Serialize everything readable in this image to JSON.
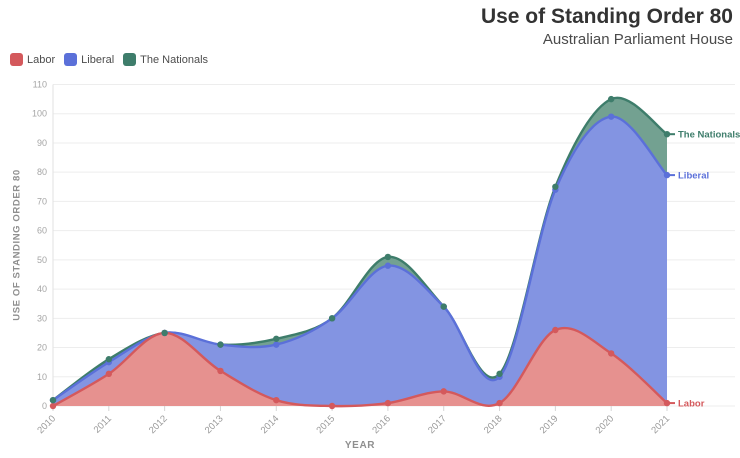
{
  "header": {
    "title": "Use of Standing Order 80",
    "subtitle": "Australian Parliament House"
  },
  "chart_data": {
    "type": "area",
    "title": "Use of Standing Order 80",
    "subtitle": "Australian Parliament House",
    "x": [
      "2010",
      "2011",
      "2012",
      "2013",
      "2014",
      "2015",
      "2016",
      "2017",
      "2018",
      "2019",
      "2020",
      "2021"
    ],
    "xlabel": "YEAR",
    "ylabel": "USE OF STANDING ORDER 80",
    "ylim": [
      0,
      110
    ],
    "ytick_step": 10,
    "grid": true,
    "legend_position": "top-left",
    "end_labels_visible": true,
    "series": [
      {
        "name": "Labor",
        "line_color": "#d4595c",
        "fill_color": "#e6918f",
        "values": [
          0,
          11,
          25,
          12,
          2,
          0,
          1,
          5,
          1,
          26,
          18,
          1
        ]
      },
      {
        "name": "Liberal",
        "line_color": "#5b70d9",
        "fill_color": "#8394e2",
        "values": [
          2,
          15,
          25,
          21,
          21,
          30,
          48,
          34,
          10,
          74,
          99,
          79
        ]
      },
      {
        "name": "The Nationals",
        "line_color": "#3e7d6b",
        "fill_color": "#73a191",
        "values": [
          2,
          16,
          25,
          21,
          23,
          30,
          51,
          34,
          11,
          75,
          105,
          93
        ]
      }
    ],
    "colors": {
      "grid": "#ededed",
      "axis_line": "#e2e2e2",
      "tick_mark": "#d5d5d5",
      "tick_label": "#a5a5a5",
      "year_label": "#999999"
    }
  }
}
